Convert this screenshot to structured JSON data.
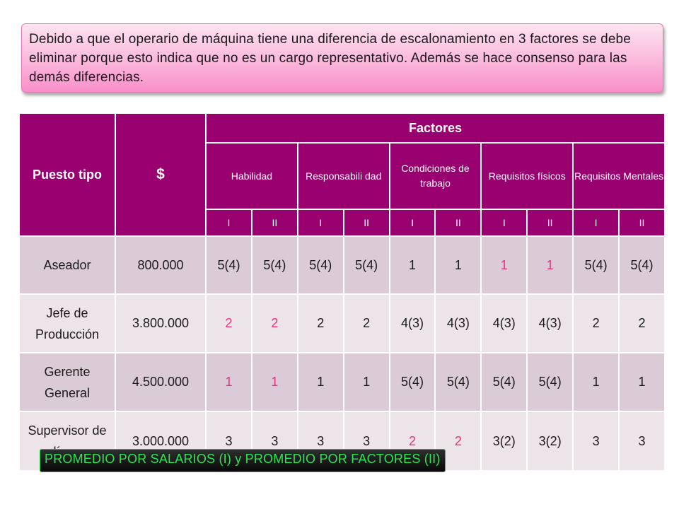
{
  "note": {
    "text": "Debido a que el operario de máquina tiene una diferencia de escalonamiento en 3 factores se debe eliminar porque esto indica que no es un cargo representativo. Además se hace consenso para las demás diferencias."
  },
  "table": {
    "col_puesto": "Puesto tipo",
    "col_salario": "$",
    "factores": "Factores",
    "factor_names": [
      "Habilidad",
      "Responsabili dad",
      "Condiciones de trabajo",
      "Requisitos físicos",
      "Requisitos Mentales"
    ],
    "roman_i": "I",
    "roman_ii": "II",
    "rows": [
      {
        "puesto": "Aseador",
        "salario": "800.000",
        "vals": [
          "5(4)",
          "5(4)",
          "5(4)",
          "5(4)",
          "1",
          "1",
          "1",
          "1",
          "5(4)",
          "5(4)"
        ]
      },
      {
        "puesto": "Jefe de Producción",
        "salario": "3.800.000",
        "vals": [
          "2",
          "2",
          "2",
          "2",
          "4(3)",
          "4(3)",
          "4(3)",
          "4(3)",
          "2",
          "2"
        ]
      },
      {
        "puesto": "Gerente General",
        "salario": "4.500.000",
        "vals": [
          "1",
          "1",
          "1",
          "1",
          "5(4)",
          "5(4)",
          "5(4)",
          "5(4)",
          "1",
          "1"
        ]
      },
      {
        "puesto": "Supervisor de línea",
        "salario": "3.000.000",
        "vals": [
          "3",
          "3",
          "3",
          "3",
          "2",
          "2",
          "3(2)",
          "3(2)",
          "3",
          "3"
        ]
      }
    ]
  },
  "footer": {
    "text": "PROMEDIO POR SALARIOS (I)  y PROMEDIO POR FACTORES (II)"
  },
  "colors": {
    "header_bg": "#990070",
    "row_odd": "#dacbd6",
    "row_even": "#ede4ea",
    "highlight": "#e8307f",
    "footer_text": "#2ee553"
  }
}
